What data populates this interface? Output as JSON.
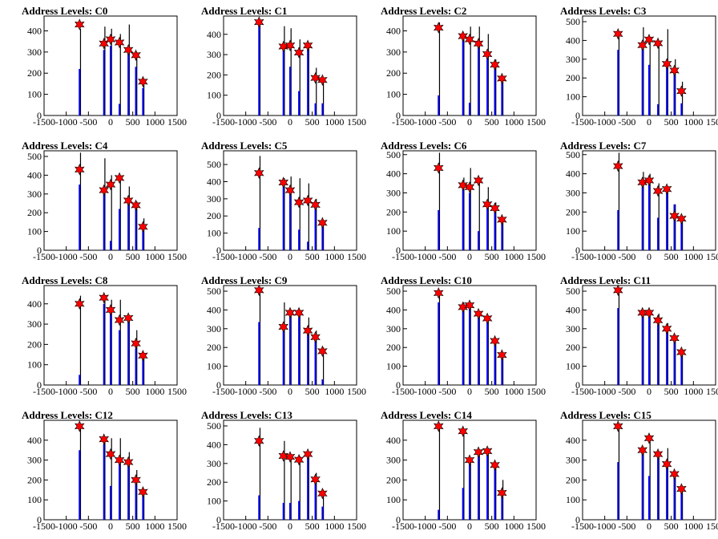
{
  "figure": {
    "colors": {
      "blue": "#0000ff",
      "black": "#000000",
      "marker": "#ff0000"
    },
    "xlim": [
      -1500,
      1500
    ],
    "xticks": [
      -1500,
      -1000,
      -500,
      0,
      500,
      1000,
      1500
    ],
    "peak_x": [
      -700,
      -150,
      0,
      200,
      400,
      570,
      730
    ]
  },
  "chart_data": [
    {
      "type": "bar",
      "title": "Address Levels: C0",
      "ylim": [
        0,
        470
      ],
      "yticks": [
        0,
        100,
        200,
        300,
        400
      ],
      "markers": [
        430,
        340,
        360,
        345,
        310,
        285,
        160
      ],
      "blue": [
        220,
        310,
        330,
        55,
        300,
        230,
        130
      ],
      "black": [
        410,
        420,
        410,
        385,
        430,
        300,
        175
      ]
    },
    {
      "type": "bar",
      "title": "Address Levels: C1",
      "ylim": [
        0,
        490
      ],
      "yticks": [
        0,
        100,
        200,
        300,
        400
      ],
      "markers": [
        460,
        340,
        345,
        310,
        345,
        185,
        175
      ],
      "blue": [
        460,
        330,
        240,
        120,
        325,
        60,
        60
      ],
      "black": [
        465,
        440,
        430,
        375,
        345,
        235,
        180
      ]
    },
    {
      "type": "bar",
      "title": "Address Levels: C2",
      "ylim": [
        0,
        470
      ],
      "yticks": [
        0,
        100,
        200,
        300,
        400
      ],
      "markers": [
        415,
        375,
        360,
        340,
        290,
        240,
        175
      ],
      "blue": [
        95,
        355,
        60,
        320,
        280,
        220,
        160
      ],
      "black": [
        440,
        360,
        420,
        420,
        385,
        265,
        180
      ]
    },
    {
      "type": "bar",
      "title": "Address Levels: C3",
      "ylim": [
        0,
        530
      ],
      "yticks": [
        0,
        100,
        200,
        300,
        400,
        500
      ],
      "markers": [
        435,
        375,
        405,
        385,
        275,
        240,
        130
      ],
      "blue": [
        350,
        360,
        270,
        60,
        260,
        230,
        65
      ],
      "black": [
        440,
        470,
        410,
        385,
        460,
        300,
        180
      ]
    },
    {
      "type": "bar",
      "title": "Address Levels: C4",
      "ylim": [
        0,
        530
      ],
      "yticks": [
        0,
        100,
        200,
        300,
        400,
        500
      ],
      "markers": [
        430,
        320,
        350,
        385,
        265,
        240,
        125
      ],
      "blue": [
        350,
        300,
        50,
        220,
        250,
        220,
        110
      ],
      "black": [
        520,
        490,
        400,
        390,
        340,
        260,
        170
      ]
    },
    {
      "type": "bar",
      "title": "Address Levels: C5",
      "ylim": [
        0,
        580
      ],
      "yticks": [
        0,
        100,
        200,
        300,
        400,
        500
      ],
      "markers": [
        450,
        395,
        350,
        280,
        290,
        265,
        160
      ],
      "blue": [
        130,
        375,
        330,
        120,
        50,
        240,
        150
      ],
      "black": [
        550,
        420,
        430,
        420,
        390,
        300,
        165
      ]
    },
    {
      "type": "bar",
      "title": "Address Levels: C6",
      "ylim": [
        0,
        520
      ],
      "yticks": [
        0,
        100,
        200,
        300,
        400,
        500
      ],
      "markers": [
        430,
        340,
        330,
        365,
        240,
        220,
        160
      ],
      "blue": [
        210,
        320,
        300,
        100,
        220,
        200,
        145
      ],
      "black": [
        510,
        380,
        430,
        380,
        330,
        250,
        160
      ]
    },
    {
      "type": "bar",
      "title": "Address Levels: C7",
      "ylim": [
        0,
        520
      ],
      "yticks": [
        0,
        100,
        200,
        300,
        400,
        500
      ],
      "markers": [
        440,
        355,
        365,
        310,
        320,
        180,
        165
      ],
      "blue": [
        210,
        330,
        350,
        170,
        300,
        240,
        150
      ],
      "black": [
        510,
        410,
        400,
        350,
        330,
        240,
        170
      ]
    },
    {
      "type": "bar",
      "title": "Address Levels: C8",
      "ylim": [
        0,
        490
      ],
      "yticks": [
        0,
        100,
        200,
        300,
        400
      ],
      "markers": [
        400,
        430,
        370,
        320,
        330,
        205,
        145
      ],
      "blue": [
        50,
        400,
        350,
        270,
        310,
        180,
        130
      ],
      "black": [
        440,
        440,
        420,
        420,
        330,
        270,
        150
      ]
    },
    {
      "type": "bar",
      "title": "Address Levels: C9",
      "ylim": [
        0,
        530
      ],
      "yticks": [
        0,
        100,
        200,
        300,
        400,
        500
      ],
      "markers": [
        505,
        310,
        385,
        385,
        290,
        255,
        180
      ],
      "blue": [
        335,
        290,
        370,
        360,
        270,
        240,
        30
      ],
      "black": [
        520,
        440,
        400,
        390,
        360,
        290,
        200
      ]
    },
    {
      "type": "bar",
      "title": "Address Levels: C10",
      "ylim": [
        0,
        530
      ],
      "yticks": [
        0,
        100,
        200,
        300,
        400,
        500
      ],
      "markers": [
        490,
        415,
        425,
        380,
        355,
        235,
        160
      ],
      "blue": [
        440,
        400,
        410,
        360,
        340,
        220,
        145
      ],
      "black": [
        500,
        440,
        440,
        390,
        360,
        250,
        170
      ]
    },
    {
      "type": "bar",
      "title": "Address Levels: C11",
      "ylim": [
        0,
        530
      ],
      "yticks": [
        0,
        100,
        200,
        300,
        400,
        500
      ],
      "markers": [
        505,
        385,
        385,
        345,
        300,
        250,
        175
      ],
      "blue": [
        410,
        370,
        370,
        320,
        280,
        230,
        160
      ],
      "black": [
        510,
        400,
        400,
        380,
        330,
        260,
        180
      ]
    },
    {
      "type": "bar",
      "title": "Address Levels: C12",
      "ylim": [
        0,
        500
      ],
      "yticks": [
        0,
        100,
        200,
        300,
        400
      ],
      "markers": [
        470,
        405,
        330,
        300,
        290,
        200,
        140
      ],
      "blue": [
        350,
        380,
        170,
        280,
        270,
        180,
        130
      ],
      "black": [
        470,
        410,
        410,
        410,
        340,
        250,
        140
      ]
    },
    {
      "type": "bar",
      "title": "Address Levels: C13",
      "ylim": [
        0,
        530
      ],
      "yticks": [
        0,
        100,
        200,
        300,
        400,
        500
      ],
      "markers": [
        420,
        340,
        335,
        320,
        350,
        215,
        140
      ],
      "blue": [
        130,
        90,
        90,
        100,
        330,
        200,
        70
      ],
      "black": [
        490,
        420,
        340,
        340,
        360,
        250,
        160
      ]
    },
    {
      "type": "bar",
      "title": "Address Levels: C14",
      "ylim": [
        0,
        500
      ],
      "yticks": [
        0,
        100,
        200,
        300,
        400
      ],
      "markers": [
        470,
        445,
        300,
        340,
        345,
        275,
        135
      ],
      "blue": [
        50,
        160,
        280,
        320,
        330,
        260,
        120
      ],
      "black": [
        470,
        450,
        300,
        340,
        350,
        280,
        200
      ]
    },
    {
      "type": "bar",
      "title": "Address Levels: C15",
      "ylim": [
        0,
        500
      ],
      "yticks": [
        0,
        100,
        200,
        300,
        400
      ],
      "markers": [
        470,
        350,
        410,
        330,
        280,
        230,
        155
      ],
      "blue": [
        290,
        330,
        220,
        310,
        260,
        210,
        140
      ],
      "black": [
        470,
        350,
        410,
        340,
        360,
        240,
        160
      ]
    }
  ]
}
